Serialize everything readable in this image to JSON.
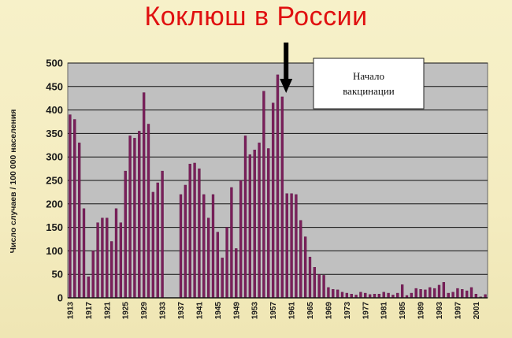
{
  "title": "Коклюш в России",
  "chart_data": {
    "type": "bar",
    "ylabel": "Число случаев / 100 000 населения",
    "ylim": [
      0,
      500
    ],
    "yticks": [
      0,
      50,
      100,
      150,
      200,
      250,
      300,
      350,
      400,
      450,
      500
    ],
    "xtick_labels": [
      "1913",
      "1917",
      "1921",
      "1925",
      "1929",
      "1933",
      "1937",
      "1941",
      "1945",
      "1949",
      "1953",
      "1957",
      "1961",
      "1965",
      "1969",
      "1973",
      "1977",
      "1981",
      "1985",
      "1989",
      "1993",
      "1997",
      "2001"
    ],
    "grid": true,
    "bar_color": "#7a1f5a",
    "plot_background": "#c0c0c0",
    "annotation": {
      "lines": [
        "Начало",
        "вакцинации"
      ],
      "arrow_year": 1960
    },
    "series": [
      {
        "values": [
          {
            "year": 1913,
            "value": 390
          },
          {
            "year": 1914,
            "value": 380
          },
          {
            "year": 1915,
            "value": 330
          },
          {
            "year": 1916,
            "value": 190
          },
          {
            "year": 1917,
            "value": 45
          },
          {
            "year": 1918,
            "value": 100
          },
          {
            "year": 1919,
            "value": 160
          },
          {
            "year": 1920,
            "value": 170
          },
          {
            "year": 1921,
            "value": 170
          },
          {
            "year": 1922,
            "value": 120
          },
          {
            "year": 1923,
            "value": 190
          },
          {
            "year": 1924,
            "value": 160
          },
          {
            "year": 1925,
            "value": 270
          },
          {
            "year": 1926,
            "value": 345
          },
          {
            "year": 1927,
            "value": 340
          },
          {
            "year": 1928,
            "value": 355
          },
          {
            "year": 1929,
            "value": 437
          },
          {
            "year": 1930,
            "value": 370
          },
          {
            "year": 1931,
            "value": 225
          },
          {
            "year": 1932,
            "value": 245
          },
          {
            "year": 1933,
            "value": 270
          },
          {
            "year": 1937,
            "value": 220
          },
          {
            "year": 1938,
            "value": 240
          },
          {
            "year": 1939,
            "value": 285
          },
          {
            "year": 1940,
            "value": 287
          },
          {
            "year": 1941,
            "value": 275
          },
          {
            "year": 1942,
            "value": 220
          },
          {
            "year": 1943,
            "value": 170
          },
          {
            "year": 1944,
            "value": 220
          },
          {
            "year": 1945,
            "value": 140
          },
          {
            "year": 1946,
            "value": 85
          },
          {
            "year": 1947,
            "value": 150
          },
          {
            "year": 1948,
            "value": 235
          },
          {
            "year": 1949,
            "value": 105
          },
          {
            "year": 1950,
            "value": 250
          },
          {
            "year": 1951,
            "value": 345
          },
          {
            "year": 1952,
            "value": 305
          },
          {
            "year": 1953,
            "value": 315
          },
          {
            "year": 1954,
            "value": 330
          },
          {
            "year": 1955,
            "value": 440
          },
          {
            "year": 1956,
            "value": 318
          },
          {
            "year": 1957,
            "value": 415
          },
          {
            "year": 1958,
            "value": 475
          },
          {
            "year": 1959,
            "value": 428
          },
          {
            "year": 1960,
            "value": 222
          },
          {
            "year": 1961,
            "value": 222
          },
          {
            "year": 1962,
            "value": 220
          },
          {
            "year": 1963,
            "value": 165
          },
          {
            "year": 1964,
            "value": 130
          },
          {
            "year": 1965,
            "value": 87
          },
          {
            "year": 1966,
            "value": 65
          },
          {
            "year": 1967,
            "value": 50
          },
          {
            "year": 1968,
            "value": 48
          },
          {
            "year": 1969,
            "value": 22
          },
          {
            "year": 1970,
            "value": 18
          },
          {
            "year": 1971,
            "value": 17
          },
          {
            "year": 1972,
            "value": 12
          },
          {
            "year": 1973,
            "value": 10
          },
          {
            "year": 1974,
            "value": 8
          },
          {
            "year": 1975,
            "value": 6
          },
          {
            "year": 1976,
            "value": 12
          },
          {
            "year": 1977,
            "value": 10
          },
          {
            "year": 1978,
            "value": 7
          },
          {
            "year": 1979,
            "value": 8
          },
          {
            "year": 1980,
            "value": 8
          },
          {
            "year": 1981,
            "value": 12
          },
          {
            "year": 1982,
            "value": 10
          },
          {
            "year": 1983,
            "value": 6
          },
          {
            "year": 1984,
            "value": 10
          },
          {
            "year": 1985,
            "value": 28
          },
          {
            "year": 1986,
            "value": 5
          },
          {
            "year": 1987,
            "value": 10
          },
          {
            "year": 1988,
            "value": 20
          },
          {
            "year": 1989,
            "value": 18
          },
          {
            "year": 1990,
            "value": 17
          },
          {
            "year": 1991,
            "value": 22
          },
          {
            "year": 1992,
            "value": 20
          },
          {
            "year": 1993,
            "value": 27
          },
          {
            "year": 1994,
            "value": 33
          },
          {
            "year": 1995,
            "value": 10
          },
          {
            "year": 1996,
            "value": 12
          },
          {
            "year": 1997,
            "value": 20
          },
          {
            "year": 1998,
            "value": 18
          },
          {
            "year": 1999,
            "value": 15
          },
          {
            "year": 2000,
            "value": 22
          },
          {
            "year": 2001,
            "value": 8
          },
          {
            "year": 2002,
            "value": 2
          },
          {
            "year": 2003,
            "value": 7
          }
        ]
      }
    ]
  }
}
